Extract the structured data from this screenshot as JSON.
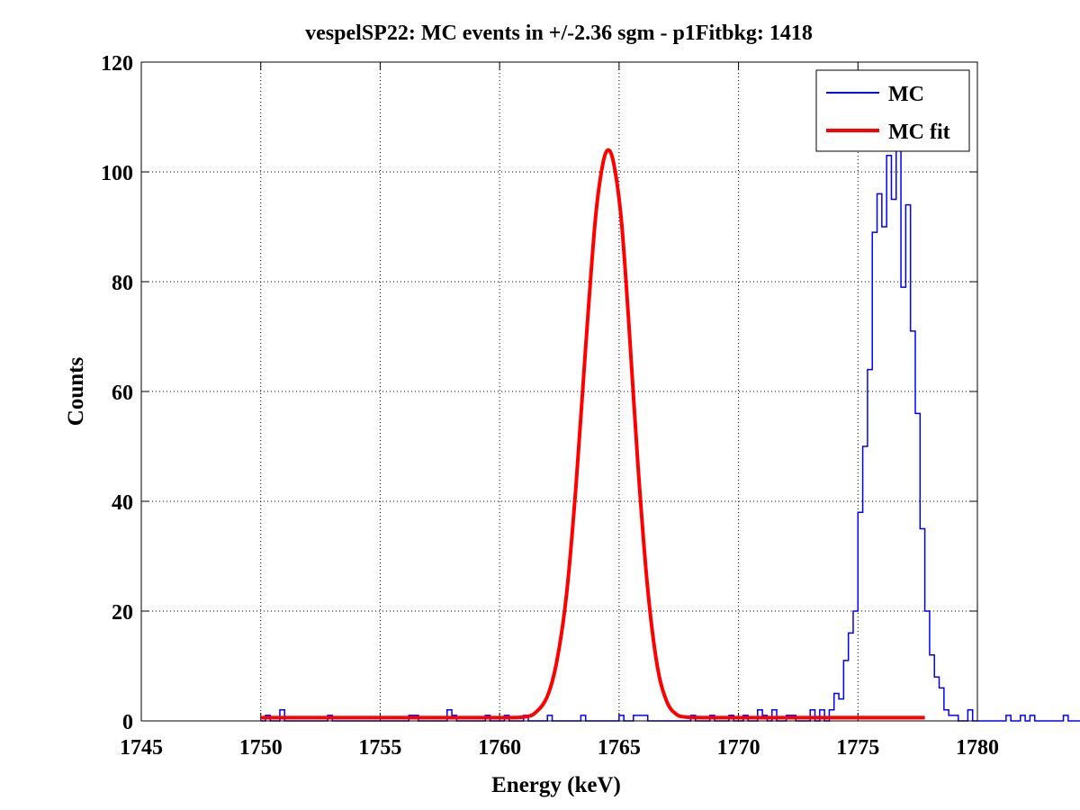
{
  "chart_data": {
    "type": "line",
    "title": "vespelSP22: MC events in +/-2.36 sgm - p1Fitbkg: 1418",
    "xlabel": "Energy (keV)",
    "ylabel": "Counts",
    "xlim": [
      1745,
      1780
    ],
    "ylim": [
      0,
      120
    ],
    "xticks": [
      1745,
      1750,
      1755,
      1760,
      1765,
      1770,
      1775,
      1780
    ],
    "yticks": [
      0,
      20,
      40,
      60,
      80,
      100,
      120
    ],
    "grid": true,
    "legend_position": "top-right",
    "series": [
      {
        "name": "MC",
        "style": "stairs",
        "color": "#0000ff",
        "bin_start": 1750.0,
        "bin_width": 0.2,
        "values": [
          0,
          1,
          0,
          0,
          2,
          0,
          0,
          0,
          0,
          0,
          0,
          0,
          0,
          0,
          1,
          0,
          0,
          0,
          0,
          0,
          0,
          0,
          0,
          0,
          0,
          0,
          0,
          0,
          0,
          0,
          0,
          1,
          1,
          0,
          0,
          0,
          0,
          0,
          0,
          2,
          1,
          0,
          0,
          0,
          0,
          0,
          0,
          1,
          0,
          0,
          0,
          1,
          0,
          0,
          0,
          1,
          0,
          0,
          0,
          0,
          1,
          0,
          0,
          0,
          0,
          0,
          0,
          1,
          0,
          0,
          0,
          0,
          0,
          0,
          0,
          1,
          0,
          0,
          1,
          1,
          1,
          0,
          0,
          0,
          0,
          0,
          0,
          0,
          0,
          0,
          1,
          0,
          0,
          0,
          1,
          0,
          0,
          0,
          1,
          0,
          0,
          1,
          0,
          0,
          2,
          1,
          0,
          2,
          0,
          0,
          1,
          1,
          0,
          0,
          0,
          2,
          0,
          2,
          0,
          2,
          5,
          4,
          11,
          16,
          20,
          38,
          50,
          64,
          89,
          96,
          90,
          103,
          95,
          106,
          79,
          94,
          71,
          56,
          35,
          20,
          12,
          8,
          6,
          2,
          1,
          1,
          0,
          0,
          2,
          0,
          0,
          0,
          0,
          0,
          0,
          0,
          1,
          0,
          0,
          1,
          0,
          1,
          0,
          0,
          0,
          0,
          0,
          0,
          1,
          0,
          0,
          0,
          0,
          0,
          1,
          0,
          0,
          1,
          0,
          0,
          0,
          0,
          0,
          0,
          0,
          0,
          1,
          0,
          0,
          0,
          0,
          0,
          1,
          0,
          0,
          0,
          0,
          0,
          0,
          0,
          0,
          0,
          0,
          1,
          0,
          0,
          3,
          2,
          1,
          0,
          1,
          0,
          0,
          0,
          1,
          0,
          0,
          0,
          0,
          0,
          0,
          0,
          0,
          0,
          0,
          0,
          0,
          0,
          0,
          0,
          0,
          0,
          1,
          0
        ]
      },
      {
        "name": "MC fit",
        "style": "line",
        "color": "#ff0000",
        "x": [
          1750.0,
          1758.0,
          1760.0,
          1761.0,
          1761.5,
          1762.0,
          1762.4,
          1762.8,
          1763.2,
          1763.6,
          1764.0,
          1764.3,
          1764.55,
          1764.8,
          1765.1,
          1765.4,
          1765.8,
          1766.2,
          1766.6,
          1767.0,
          1767.4,
          1767.8,
          1768.5,
          1770.0,
          1775.0,
          1777.8
        ],
        "y": [
          0.6,
          0.6,
          0.6,
          0.7,
          1.5,
          4.5,
          11,
          23,
          43,
          68,
          91,
          101,
          104,
          101,
          91,
          73,
          46,
          24,
          10,
          3.5,
          1.2,
          0.7,
          0.6,
          0.6,
          0.6,
          0.6
        ]
      }
    ]
  }
}
